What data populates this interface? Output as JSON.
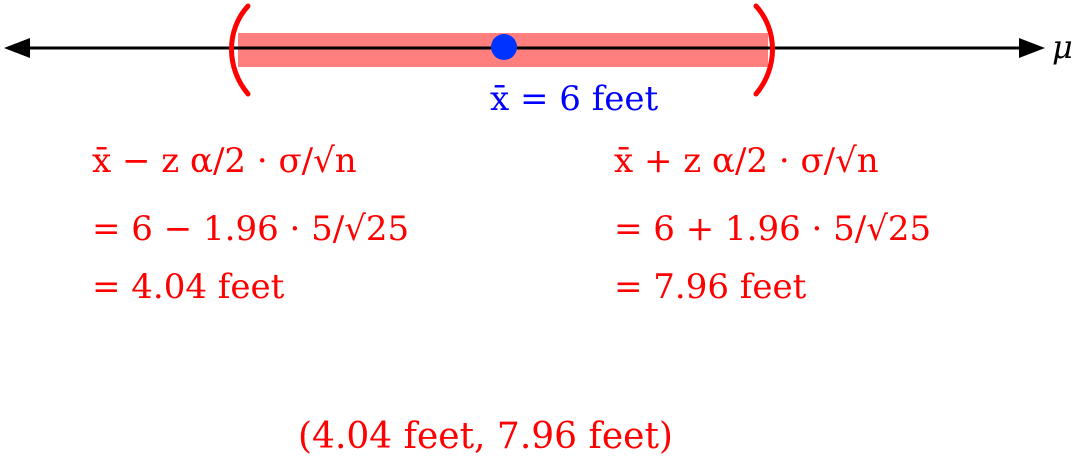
{
  "number_line": {
    "axis_label": "μ",
    "point_label": "x̄ = 6 feet",
    "point_value": 6,
    "interval_lower": 4.04,
    "interval_upper": 7.96,
    "colors": {
      "interval_fill": "#ff7f7f",
      "bracket": "#ff0000",
      "point": "#0033ff",
      "axis": "#000000"
    }
  },
  "lower_bound": {
    "formula": "x̄ − z α/2 · σ/√n",
    "substitution": "= 6 − 1.96 · 5/√25",
    "result": "= 4.04 feet"
  },
  "upper_bound": {
    "formula": "x̄ + z α/2 · σ/√n",
    "substitution": "= 6 + 1.96 · 5/√25",
    "result": "= 7.96 feet"
  },
  "final_interval": "(4.04 feet, 7.96 feet)"
}
